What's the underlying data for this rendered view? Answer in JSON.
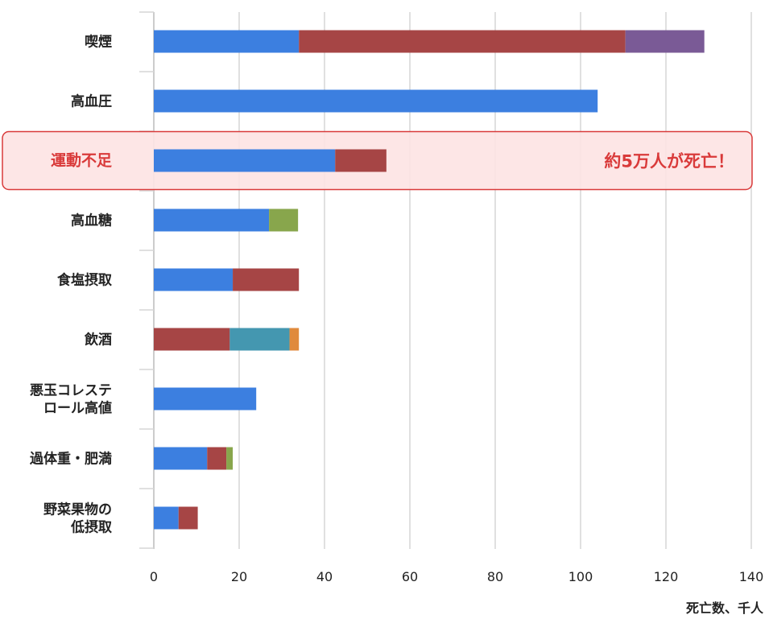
{
  "chart_data": {
    "type": "bar",
    "orientation": "horizontal",
    "stacked": true,
    "categories": [
      "喫煙",
      "高血圧",
      "運動不足",
      "高血糖",
      "食塩摂取",
      "飲酒",
      "悪玉コレステロール高値",
      "過体重・肥満",
      "野菜果物の低摂取"
    ],
    "category_lines": [
      [
        "喫煙"
      ],
      [
        "高血圧"
      ],
      [
        "運動不足"
      ],
      [
        "高血糖"
      ],
      [
        "食塩摂取"
      ],
      [
        "飲酒"
      ],
      [
        "悪玉コレステ",
        "ロール高値"
      ],
      [
        "過体重・肥満"
      ],
      [
        "野菜果物の",
        "低摂取"
      ]
    ],
    "series": [
      {
        "color": "#3c7fe0",
        "values": [
          34,
          104,
          42.5,
          27,
          18.5,
          0,
          24,
          12.5,
          5.8
        ]
      },
      {
        "color": "#a64545",
        "values": [
          76.5,
          0,
          12,
          0,
          15.5,
          17.8,
          0,
          4.5,
          4.5
        ]
      },
      {
        "color": "#7a5a96",
        "values": [
          18.5,
          0,
          0,
          0,
          0,
          0,
          0,
          0,
          0
        ]
      },
      {
        "color": "#88a64c",
        "values": [
          0,
          0,
          0,
          6.8,
          0,
          0,
          0,
          1.5,
          0
        ]
      },
      {
        "color": "#4497b0",
        "values": [
          0,
          0,
          0,
          0,
          0,
          14,
          0,
          0,
          0
        ]
      },
      {
        "color": "#e08a3c",
        "values": [
          0,
          0,
          0,
          0,
          0,
          2.2,
          0,
          0,
          0
        ]
      }
    ],
    "xlim": [
      0,
      140
    ],
    "xticks": [
      0,
      20,
      40,
      60,
      80,
      100,
      120,
      140
    ],
    "xlabel": "死亡数、千人",
    "grid": true,
    "highlight": {
      "category_index": 2,
      "annotation": "約5万人が死亡！",
      "color": "#d93a3a",
      "fill": "#fde3e3"
    }
  }
}
